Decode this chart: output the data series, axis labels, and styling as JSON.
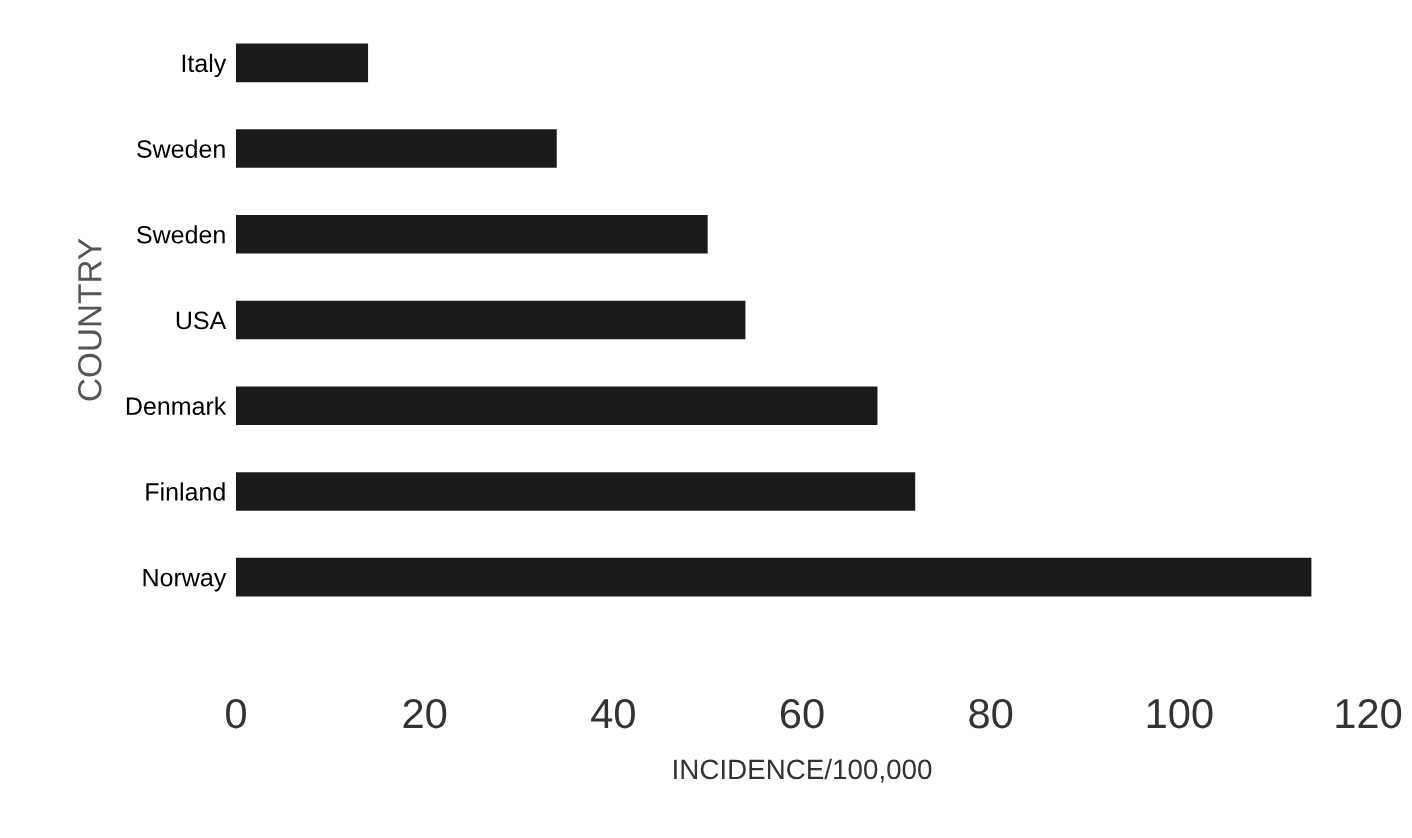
{
  "chart_data": {
    "type": "bar",
    "orientation": "horizontal",
    "xlabel": "INCIDENCE/100,000",
    "ylabel": "COUNTRY",
    "categories": [
      "Italy",
      "Sweden",
      "Sweden",
      "USA",
      "Denmark",
      "Finland",
      "Norway"
    ],
    "values": [
      14,
      34,
      50,
      54,
      68,
      72,
      114
    ],
    "color": "#1a1a1a",
    "xlim": [
      0,
      120
    ],
    "xticks": [
      0,
      20,
      40,
      60,
      80,
      100,
      120
    ],
    "grid": false,
    "legend": false
  }
}
